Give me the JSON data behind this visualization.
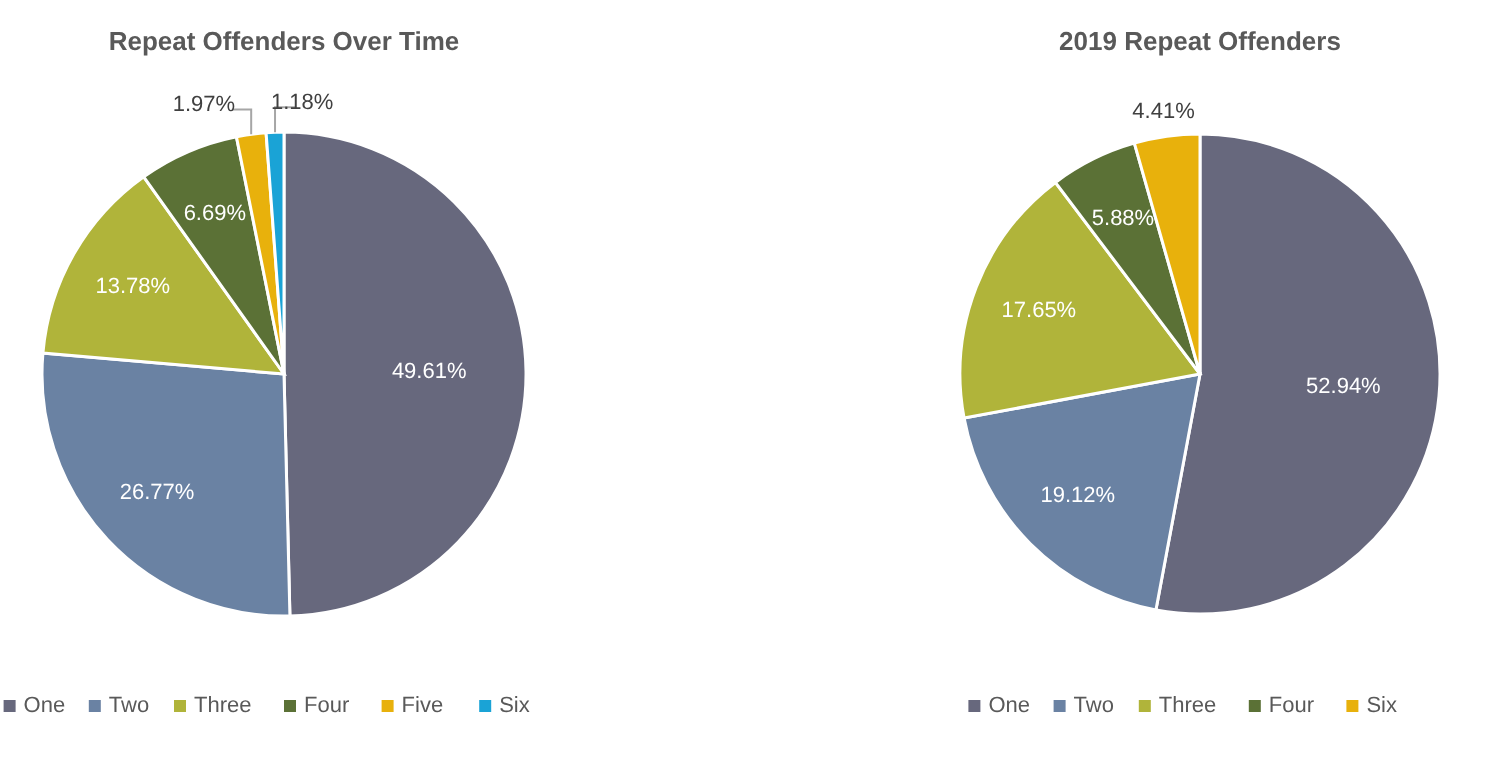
{
  "chart_data": [
    {
      "type": "pie",
      "title": "Repeat Offenders Over Time",
      "categories": [
        "One",
        "Two",
        "Three",
        "Four",
        "Five",
        "Six"
      ],
      "values": [
        49.61,
        26.77,
        13.78,
        6.69,
        1.97,
        1.18
      ],
      "colors": [
        "#67687d",
        "#6a82a3",
        "#b0b43a",
        "#5b7136",
        "#e8b10c",
        "#1aa3d6"
      ],
      "value_labels": [
        "49.61%",
        "26.77%",
        "13.78%",
        "6.69%",
        "1.97%",
        "1.18%"
      ],
      "legend": "bottom"
    },
    {
      "type": "pie",
      "title": "2019 Repeat Offenders",
      "categories": [
        "One",
        "Two",
        "Three",
        "Four",
        "Six"
      ],
      "values": [
        52.94,
        19.12,
        17.65,
        5.88,
        4.41
      ],
      "colors": [
        "#67687d",
        "#6a82a3",
        "#b0b43a",
        "#5b7136",
        "#e8b10c"
      ],
      "value_labels": [
        "52.94%",
        "19.12%",
        "17.65%",
        "5.88%",
        "4.41%"
      ],
      "legend": "bottom"
    }
  ]
}
